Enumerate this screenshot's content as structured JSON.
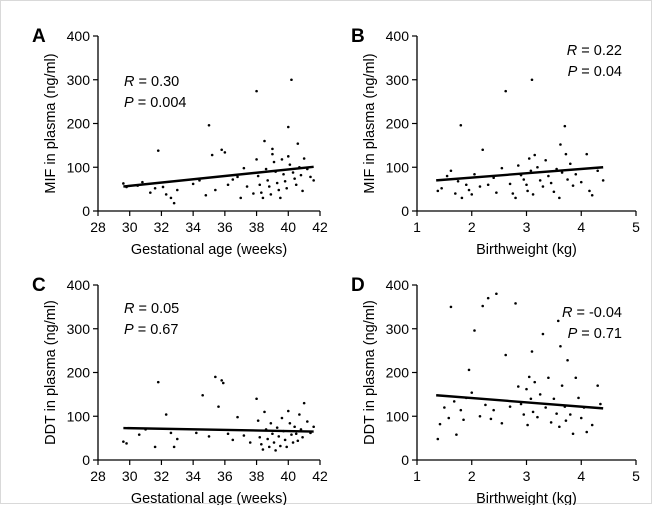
{
  "chart_data": [
    {
      "panel": "A",
      "type": "scatter",
      "xlabel": "Gestational age (weeks)",
      "ylabel": "MIF in plasma (ng/ml)",
      "xlim": [
        28,
        42
      ],
      "ylim": [
        0,
        400
      ],
      "xticks": [
        28,
        30,
        32,
        34,
        36,
        38,
        40,
        42
      ],
      "yticks": [
        0,
        100,
        200,
        300,
        400
      ],
      "stats": {
        "r_label": "R",
        "r_value": "= 0.30",
        "p_label": "P",
        "p_value": "= 0.004"
      },
      "fit_line": [
        [
          29.6,
          56
        ],
        [
          41.6,
          101
        ]
      ],
      "points": [
        [
          29.6,
          63
        ],
        [
          29.8,
          55
        ],
        [
          30.5,
          58
        ],
        [
          30.8,
          66
        ],
        [
          31.3,
          42
        ],
        [
          31.6,
          52
        ],
        [
          31.8,
          138
        ],
        [
          32.1,
          55
        ],
        [
          32.3,
          38
        ],
        [
          32.6,
          30
        ],
        [
          32.8,
          18
        ],
        [
          33,
          48
        ],
        [
          34,
          62
        ],
        [
          34.4,
          70
        ],
        [
          34.8,
          36
        ],
        [
          35,
          196
        ],
        [
          35.2,
          128
        ],
        [
          35.4,
          48
        ],
        [
          35.8,
          140
        ],
        [
          36,
          134
        ],
        [
          36.2,
          60
        ],
        [
          36.5,
          72
        ],
        [
          36.8,
          78
        ],
        [
          37,
          30
        ],
        [
          37.2,
          98
        ],
        [
          37.4,
          56
        ],
        [
          37.8,
          40
        ],
        [
          38,
          274
        ],
        [
          38,
          118
        ],
        [
          38.1,
          80
        ],
        [
          38.2,
          60
        ],
        [
          38.3,
          42
        ],
        [
          38.4,
          30
        ],
        [
          38.5,
          160
        ],
        [
          38.6,
          96
        ],
        [
          38.7,
          70
        ],
        [
          38.8,
          56
        ],
        [
          38.9,
          38
        ],
        [
          39,
          142
        ],
        [
          39,
          130
        ],
        [
          39.1,
          112
        ],
        [
          39.2,
          90
        ],
        [
          39.3,
          64
        ],
        [
          39.4,
          48
        ],
        [
          39.5,
          30
        ],
        [
          39.6,
          118
        ],
        [
          39.7,
          84
        ],
        [
          39.8,
          68
        ],
        [
          39.9,
          52
        ],
        [
          40,
          192
        ],
        [
          40,
          125
        ],
        [
          40.1,
          106
        ],
        [
          40.2,
          300
        ],
        [
          40.3,
          88
        ],
        [
          40.4,
          74
        ],
        [
          40.5,
          60
        ],
        [
          40.6,
          154
        ],
        [
          40.7,
          100
        ],
        [
          40.8,
          82
        ],
        [
          40.9,
          46
        ],
        [
          41,
          120
        ],
        [
          41.2,
          96
        ],
        [
          41.4,
          78
        ],
        [
          41.6,
          70
        ]
      ]
    },
    {
      "panel": "B",
      "type": "scatter",
      "xlabel": "Birthweight (kg)",
      "ylabel": "MIF in plasma (ng/ml)",
      "xlim": [
        1,
        5
      ],
      "ylim": [
        0,
        400
      ],
      "xticks": [
        1,
        2,
        3,
        4,
        5
      ],
      "yticks": [
        0,
        100,
        200,
        300,
        400
      ],
      "stats": {
        "r_label": "R",
        "r_value": "= 0.22",
        "p_label": "P",
        "p_value": "= 0.04"
      },
      "fit_line": [
        [
          1.35,
          70
        ],
        [
          4.4,
          100
        ]
      ],
      "points": [
        [
          1.38,
          46
        ],
        [
          1.45,
          52
        ],
        [
          1.55,
          80
        ],
        [
          1.62,
          92
        ],
        [
          1.7,
          40
        ],
        [
          1.75,
          68
        ],
        [
          1.8,
          196
        ],
        [
          1.82,
          30
        ],
        [
          1.9,
          60
        ],
        [
          1.95,
          48
        ],
        [
          2.0,
          38
        ],
        [
          2.05,
          84
        ],
        [
          2.15,
          56
        ],
        [
          2.2,
          140
        ],
        [
          2.3,
          60
        ],
        [
          2.4,
          76
        ],
        [
          2.45,
          42
        ],
        [
          2.55,
          98
        ],
        [
          2.62,
          274
        ],
        [
          2.7,
          62
        ],
        [
          2.75,
          40
        ],
        [
          2.8,
          30
        ],
        [
          2.85,
          104
        ],
        [
          2.9,
          82
        ],
        [
          2.95,
          72
        ],
        [
          3.0,
          60
        ],
        [
          3.02,
          46
        ],
        [
          3.05,
          120
        ],
        [
          3.08,
          92
        ],
        [
          3.1,
          300
        ],
        [
          3.12,
          38
        ],
        [
          3.15,
          128
        ],
        [
          3.2,
          100
        ],
        [
          3.25,
          70
        ],
        [
          3.3,
          56
        ],
        [
          3.35,
          116
        ],
        [
          3.4,
          80
        ],
        [
          3.45,
          64
        ],
        [
          3.5,
          44
        ],
        [
          3.55,
          96
        ],
        [
          3.6,
          30
        ],
        [
          3.62,
          152
        ],
        [
          3.65,
          88
        ],
        [
          3.7,
          194
        ],
        [
          3.72,
          130
        ],
        [
          3.75,
          72
        ],
        [
          3.8,
          108
        ],
        [
          3.85,
          58
        ],
        [
          3.9,
          84
        ],
        [
          4.0,
          66
        ],
        [
          4.1,
          130
        ],
        [
          4.15,
          46
        ],
        [
          4.2,
          36
        ],
        [
          4.3,
          92
        ],
        [
          4.4,
          70
        ]
      ]
    },
    {
      "panel": "C",
      "type": "scatter",
      "xlabel": "Gestational age (weeks)",
      "ylabel": "DDT in plasma (ng/ml)",
      "xlim": [
        28,
        42
      ],
      "ylim": [
        0,
        400
      ],
      "xticks": [
        28,
        30,
        32,
        34,
        36,
        38,
        40,
        42
      ],
      "yticks": [
        0,
        100,
        200,
        300,
        400
      ],
      "stats": {
        "r_label": "R",
        "r_value": "= 0.05",
        "p_label": "P",
        "p_value": "= 0.67"
      },
      "fit_line": [
        [
          29.6,
          73
        ],
        [
          41.6,
          65
        ]
      ],
      "points": [
        [
          29.6,
          42
        ],
        [
          29.8,
          38
        ],
        [
          30.6,
          58
        ],
        [
          31,
          70
        ],
        [
          31.6,
          30
        ],
        [
          31.8,
          178
        ],
        [
          32.3,
          104
        ],
        [
          32.6,
          62
        ],
        [
          32.8,
          30
        ],
        [
          33,
          48
        ],
        [
          34.2,
          62
        ],
        [
          34.6,
          148
        ],
        [
          35,
          54
        ],
        [
          35.4,
          190
        ],
        [
          35.6,
          122
        ],
        [
          35.8,
          182
        ],
        [
          35.9,
          176
        ],
        [
          36.2,
          60
        ],
        [
          36.5,
          46
        ],
        [
          36.8,
          98
        ],
        [
          37.2,
          56
        ],
        [
          37.6,
          40
        ],
        [
          38,
          140
        ],
        [
          38.1,
          90
        ],
        [
          38.2,
          52
        ],
        [
          38.3,
          36
        ],
        [
          38.4,
          24
        ],
        [
          38.5,
          110
        ],
        [
          38.6,
          70
        ],
        [
          38.7,
          48
        ],
        [
          38.8,
          30
        ],
        [
          38.9,
          84
        ],
        [
          39,
          60
        ],
        [
          39.1,
          40
        ],
        [
          39.2,
          22
        ],
        [
          39.3,
          74
        ],
        [
          39.4,
          54
        ],
        [
          39.5,
          32
        ],
        [
          39.6,
          96
        ],
        [
          39.7,
          66
        ],
        [
          39.8,
          46
        ],
        [
          39.9,
          30
        ],
        [
          40,
          112
        ],
        [
          40.1,
          84
        ],
        [
          40.2,
          58
        ],
        [
          40.3,
          40
        ],
        [
          40.4,
          76
        ],
        [
          40.5,
          60
        ],
        [
          40.6,
          44
        ],
        [
          40.7,
          104
        ],
        [
          40.8,
          70
        ],
        [
          40.9,
          52
        ],
        [
          41,
          130
        ],
        [
          41.2,
          88
        ],
        [
          41.4,
          62
        ],
        [
          41.6,
          76
        ]
      ]
    },
    {
      "panel": "D",
      "type": "scatter",
      "xlabel": "Birthweight (kg)",
      "ylabel": "DDT in plasma (ng/ml)",
      "xlim": [
        1,
        5
      ],
      "ylim": [
        0,
        400
      ],
      "xticks": [
        1,
        2,
        3,
        4,
        5
      ],
      "yticks": [
        0,
        100,
        200,
        300,
        400
      ],
      "stats": {
        "r_label": "R",
        "r_value": "= -0.04",
        "p_label": "P",
        "p_value": "= 0.71"
      },
      "fit_line": [
        [
          1.35,
          148
        ],
        [
          4.4,
          118
        ]
      ],
      "points": [
        [
          1.38,
          48
        ],
        [
          1.42,
          82
        ],
        [
          1.5,
          120
        ],
        [
          1.58,
          96
        ],
        [
          1.62,
          350
        ],
        [
          1.68,
          134
        ],
        [
          1.72,
          58
        ],
        [
          1.8,
          114
        ],
        [
          1.85,
          92
        ],
        [
          1.9,
          142
        ],
        [
          1.95,
          206
        ],
        [
          2.0,
          154
        ],
        [
          2.05,
          296
        ],
        [
          2.15,
          100
        ],
        [
          2.2,
          352
        ],
        [
          2.25,
          126
        ],
        [
          2.3,
          370
        ],
        [
          2.35,
          94
        ],
        [
          2.4,
          114
        ],
        [
          2.45,
          380
        ],
        [
          2.55,
          84
        ],
        [
          2.62,
          240
        ],
        [
          2.7,
          122
        ],
        [
          2.8,
          358
        ],
        [
          2.85,
          168
        ],
        [
          2.9,
          128
        ],
        [
          2.95,
          104
        ],
        [
          3.0,
          162
        ],
        [
          3.02,
          80
        ],
        [
          3.05,
          190
        ],
        [
          3.08,
          140
        ],
        [
          3.1,
          248
        ],
        [
          3.12,
          110
        ],
        [
          3.15,
          178
        ],
        [
          3.2,
          98
        ],
        [
          3.25,
          150
        ],
        [
          3.3,
          288
        ],
        [
          3.35,
          120
        ],
        [
          3.4,
          188
        ],
        [
          3.45,
          86
        ],
        [
          3.5,
          140
        ],
        [
          3.55,
          106
        ],
        [
          3.58,
          318
        ],
        [
          3.6,
          76
        ],
        [
          3.62,
          260
        ],
        [
          3.65,
          170
        ],
        [
          3.7,
          122
        ],
        [
          3.72,
          90
        ],
        [
          3.75,
          228
        ],
        [
          3.8,
          104
        ],
        [
          3.85,
          60
        ],
        [
          3.9,
          188
        ],
        [
          3.95,
          142
        ],
        [
          4.0,
          96
        ],
        [
          4.05,
          120
        ],
        [
          4.1,
          64
        ],
        [
          4.2,
          80
        ],
        [
          4.3,
          170
        ],
        [
          4.35,
          128
        ]
      ]
    }
  ]
}
